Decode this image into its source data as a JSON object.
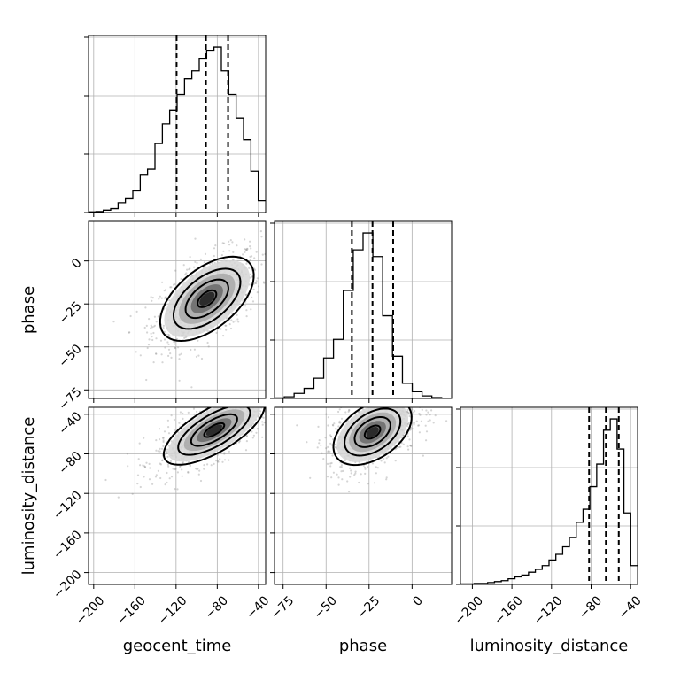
{
  "chart_data": {
    "type": "corner",
    "parameters": [
      "geocent_time",
      "phase",
      "luminosity_distance"
    ],
    "axes": {
      "geocent_time": {
        "range": [
          -205,
          -33
        ],
        "ticks": [
          -200,
          -160,
          -120,
          -80,
          -40
        ],
        "tick_labels": [
          "−200",
          "−160",
          "−120",
          "−80",
          "−40"
        ]
      },
      "phase": {
        "range": [
          -80,
          23
        ],
        "ticks": [
          -75,
          -50,
          -25,
          0
        ],
        "tick_labels": [
          "−75",
          "−50",
          "−25",
          "0"
        ]
      },
      "luminosity_distance": {
        "range": [
          -212,
          -33
        ],
        "ticks": [
          -200,
          -160,
          -120,
          -80,
          -40
        ],
        "tick_labels": [
          "−200",
          "−160",
          "−120",
          "−80",
          "−40"
        ]
      }
    },
    "histograms": [
      {
        "parameter": "geocent_time",
        "bin_edges": [
          -205,
          -197.8,
          -190.7,
          -183.5,
          -176.3,
          -169.2,
          -162,
          -154.8,
          -147.7,
          -140.5,
          -133.3,
          -126.2,
          -119,
          -111.8,
          -104.7,
          -97.5,
          -90.3,
          -83.2,
          -76,
          -68.8,
          -61.7,
          -54.5,
          -47.3,
          -40.2,
          -33
        ],
        "counts": [
          0.3,
          0.5,
          1.2,
          2,
          5,
          7,
          11,
          19,
          22,
          35,
          45,
          52,
          60,
          68,
          72,
          78,
          82,
          84,
          72,
          60,
          48,
          37,
          21,
          6
        ],
        "quantiles": [
          -119.5,
          -91,
          -69.5
        ]
      },
      {
        "parameter": "phase",
        "bin_edges": [
          -80,
          -74.3,
          -68.6,
          -62.8,
          -57.1,
          -51.4,
          -45.7,
          -40,
          -34.2,
          -28.5,
          -22.8,
          -17.1,
          -11.4,
          -5.6,
          0.1,
          5.8,
          11.5,
          17.2,
          23
        ],
        "counts": [
          0.3,
          1,
          3,
          6,
          12,
          24,
          35,
          64,
          88,
          98,
          84,
          49,
          25,
          9,
          4,
          1.5,
          0.5,
          0.2
        ],
        "quantiles": [
          -35,
          -23,
          -11
        ]
      },
      {
        "parameter": "luminosity_distance",
        "bin_edges": [
          -212,
          -205.1,
          -198.2,
          -191.3,
          -184.5,
          -177.6,
          -170.7,
          -163.8,
          -156.9,
          -150,
          -143.2,
          -136.3,
          -129.4,
          -122.5,
          -115.6,
          -108.7,
          -101.9,
          -95,
          -88.1,
          -81.2,
          -74.3,
          -67.4,
          -60.6,
          -53.7,
          -46.8,
          -39.9,
          -33
        ],
        "counts": [
          0.3,
          0.3,
          0.5,
          0.5,
          1,
          1.5,
          2,
          3,
          4,
          5,
          6.5,
          8,
          10,
          13,
          16,
          20,
          25,
          33,
          40,
          52,
          64,
          82,
          88,
          72,
          38,
          10
        ],
        "quantiles": [
          -82,
          -65,
          -52
        ]
      }
    ],
    "joint": [
      {
        "x": "geocent_time",
        "y": "phase",
        "center": [
          -90,
          -22
        ],
        "sd": [
          26,
          14
        ],
        "correlation": 0.55
      },
      {
        "x": "geocent_time",
        "y": "luminosity_distance",
        "center": [
          -83,
          -56
        ],
        "sd": [
          28,
          20
        ],
        "correlation": 0.7
      },
      {
        "x": "phase",
        "y": "luminosity_distance",
        "center": [
          -23,
          -58
        ],
        "sd": [
          13,
          19
        ],
        "correlation": 0.45
      }
    ],
    "grid": true
  }
}
